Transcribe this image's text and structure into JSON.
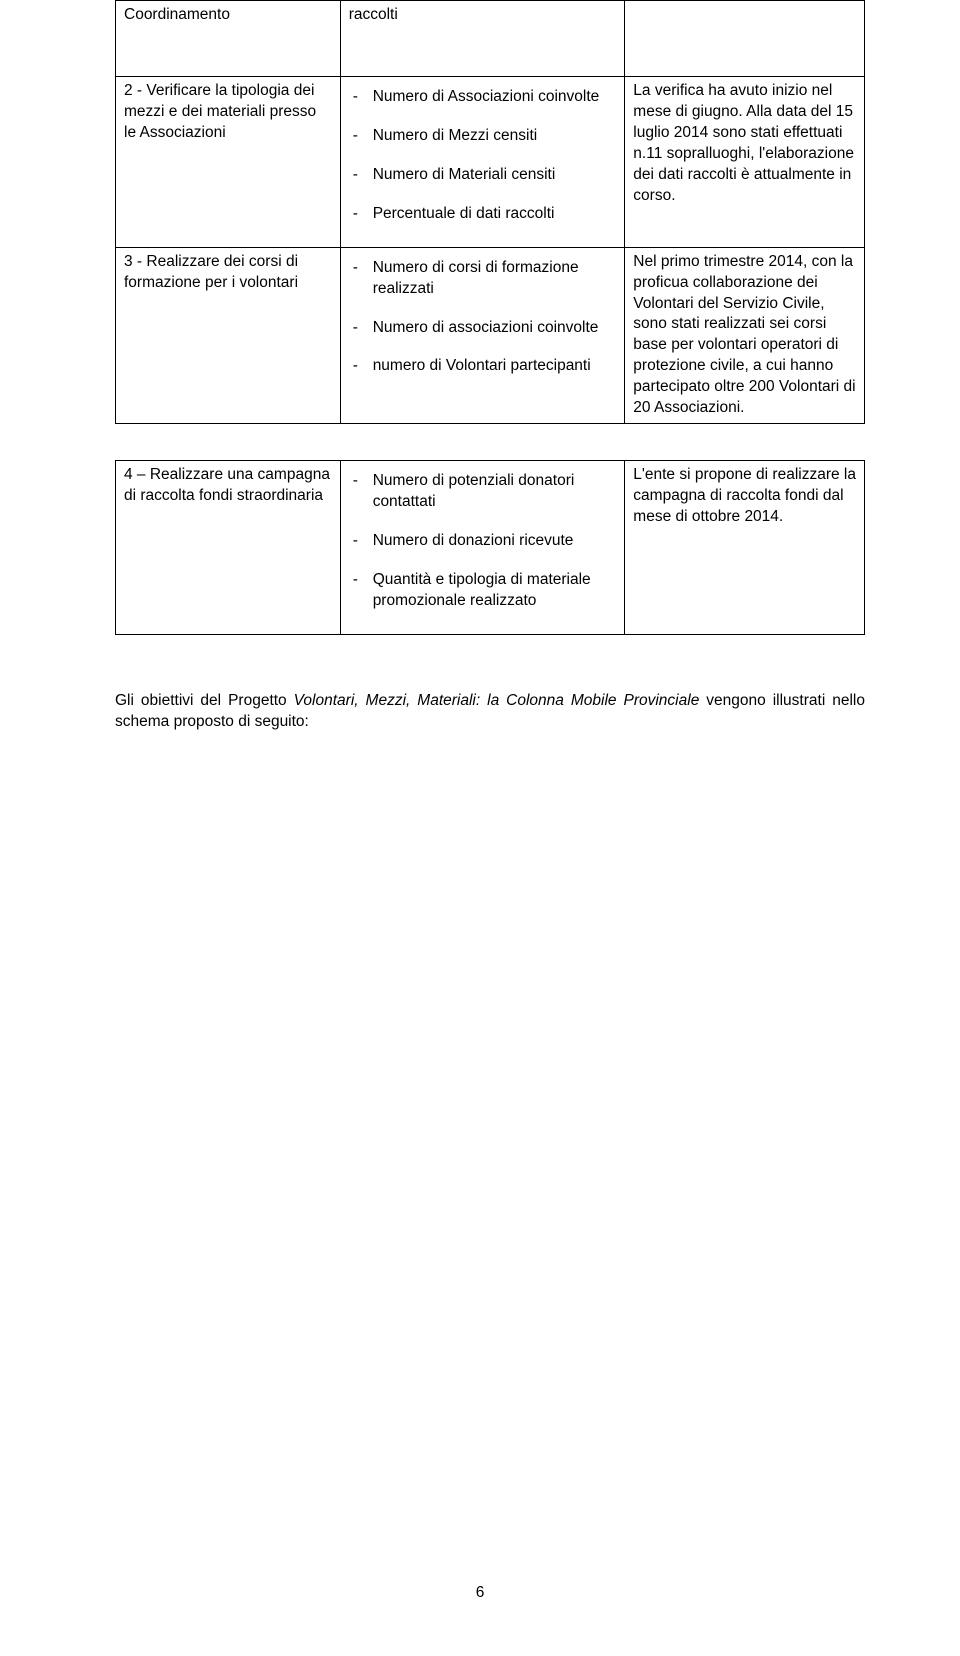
{
  "table1": {
    "row0": {
      "c1": "Coordinamento",
      "c2": "raccolti",
      "c3": ""
    },
    "row1": {
      "c1": "2 - Verificare la tipologia dei mezzi e dei materiali presso le Associazioni",
      "c2_items": [
        "Numero di Associazioni coinvolte",
        "Numero di Mezzi censiti",
        "Numero di Materiali censiti",
        "Percentuale di dati raccolti"
      ],
      "c3": "La verifica ha avuto inizio nel mese di giugno. Alla data del 15 luglio 2014 sono stati effettuati n.11 sopralluoghi, l'elaborazione dei dati raccolti è attualmente in corso."
    },
    "row2": {
      "c1": "3 - Realizzare dei corsi di formazione per i volontari",
      "c2_items": [
        "Numero di corsi di formazione realizzati",
        "Numero di associazioni coinvolte",
        "numero di Volontari partecipanti"
      ],
      "c3": "Nel primo trimestre 2014, con la proficua collaborazione dei Volontari del Servizio Civile, sono stati realizzati sei corsi base per volontari operatori di protezione civile, a cui hanno partecipato oltre 200 Volontari di 20 Associazioni."
    }
  },
  "table2": {
    "row0": {
      "c1": "4 – Realizzare una campagna di raccolta fondi straordinaria",
      "c2_items": [
        "Numero di potenziali donatori contattati",
        "Numero di donazioni ricevute",
        "Quantità e tipologia di materiale promozionale realizzato"
      ],
      "c3": "L'ente si propone di realizzare la campagna di raccolta fondi dal mese di ottobre 2014."
    }
  },
  "paragraph": {
    "pre": "Gli obiettivi del Progetto ",
    "italic": "Volontari, Mezzi, Materiali: la Colonna Mobile Provinciale",
    "post": " vengono illustrati nello schema proposto di seguito:"
  },
  "page_number": "6"
}
